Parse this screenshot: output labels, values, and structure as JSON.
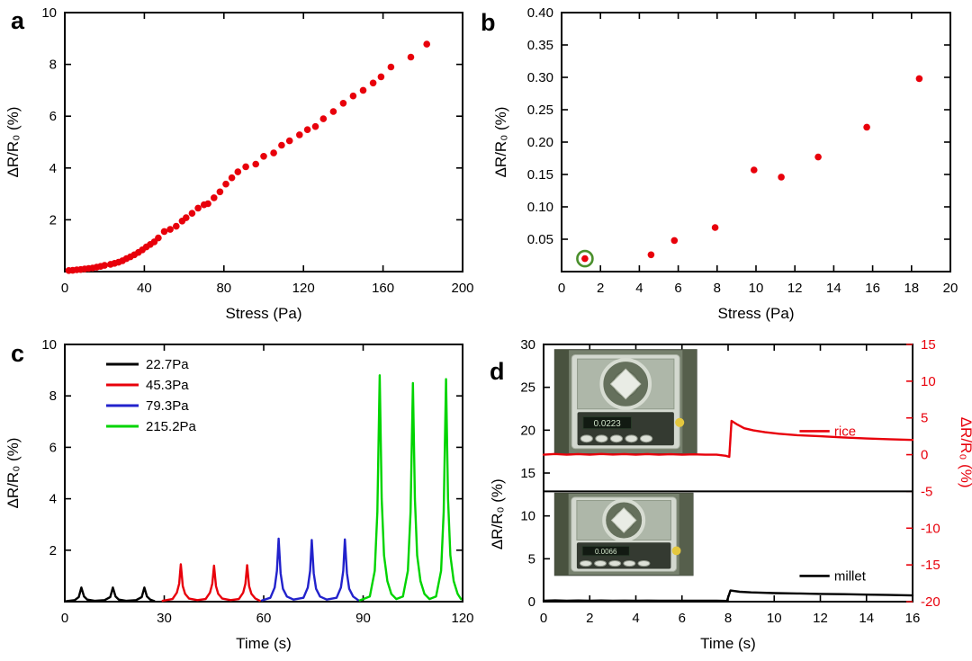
{
  "figure": {
    "background": "#ffffff"
  },
  "chart_data": [
    {
      "panel_label": "a",
      "type": "scatter",
      "xlabel": "Stress (Pa)",
      "ylabel": "ΔR/R₀ (%)",
      "xlim": [
        0,
        200
      ],
      "ylim": [
        0,
        10
      ],
      "xticks": [
        0,
        40,
        80,
        120,
        160,
        200
      ],
      "xtick_labels": [
        "0",
        "40",
        "80",
        "120",
        "160",
        "200"
      ],
      "yticks": [
        2,
        4,
        6,
        8,
        10
      ],
      "ytick_labels": [
        "2",
        "4",
        "6",
        "8",
        "10"
      ],
      "marker_color": "#e8000b",
      "points": [
        [
          2,
          0.04
        ],
        [
          4,
          0.05
        ],
        [
          6,
          0.07
        ],
        [
          8,
          0.08
        ],
        [
          10,
          0.1
        ],
        [
          12,
          0.12
        ],
        [
          14,
          0.14
        ],
        [
          16,
          0.17
        ],
        [
          18,
          0.2
        ],
        [
          20,
          0.24
        ],
        [
          23,
          0.28
        ],
        [
          25,
          0.32
        ],
        [
          27,
          0.36
        ],
        [
          29,
          0.42
        ],
        [
          31,
          0.5
        ],
        [
          33,
          0.57
        ],
        [
          35,
          0.65
        ],
        [
          37,
          0.74
        ],
        [
          39,
          0.84
        ],
        [
          41,
          0.95
        ],
        [
          43,
          1.05
        ],
        [
          45,
          1.15
        ],
        [
          47,
          1.3
        ],
        [
          50,
          1.55
        ],
        [
          53,
          1.63
        ],
        [
          56,
          1.75
        ],
        [
          59,
          1.95
        ],
        [
          61,
          2.08
        ],
        [
          64,
          2.25
        ],
        [
          67,
          2.45
        ],
        [
          70,
          2.58
        ],
        [
          72,
          2.62
        ],
        [
          75,
          2.85
        ],
        [
          78,
          3.08
        ],
        [
          81,
          3.38
        ],
        [
          84,
          3.62
        ],
        [
          87,
          3.85
        ],
        [
          91,
          4.05
        ],
        [
          96,
          4.15
        ],
        [
          100,
          4.45
        ],
        [
          105,
          4.58
        ],
        [
          109,
          4.88
        ],
        [
          113,
          5.05
        ],
        [
          118,
          5.28
        ],
        [
          122,
          5.48
        ],
        [
          126,
          5.6
        ],
        [
          130,
          5.9
        ],
        [
          135,
          6.18
        ],
        [
          140,
          6.5
        ],
        [
          145,
          6.78
        ],
        [
          150,
          7.0
        ],
        [
          155,
          7.28
        ],
        [
          159,
          7.52
        ],
        [
          164,
          7.9
        ],
        [
          174,
          8.28
        ],
        [
          182,
          8.78
        ]
      ]
    },
    {
      "panel_label": "b",
      "type": "scatter",
      "xlabel": "Stress (Pa)",
      "ylabel": "ΔR/R₀ (%)",
      "xlim": [
        0,
        20
      ],
      "ylim": [
        0,
        0.4
      ],
      "xticks": [
        0,
        2,
        4,
        6,
        8,
        10,
        12,
        14,
        16,
        18,
        20
      ],
      "xtick_labels": [
        "0",
        "2",
        "4",
        "6",
        "8",
        "10",
        "12",
        "14",
        "16",
        "18",
        "20"
      ],
      "yticks": [
        0.05,
        0.1,
        0.15,
        0.2,
        0.25,
        0.3,
        0.35,
        0.4
      ],
      "ytick_labels": [
        "0.05",
        "0.10",
        "0.15",
        "0.20",
        "0.25",
        "0.30",
        "0.35",
        "0.40"
      ],
      "marker_color": "#e8000b",
      "highlight_circle": {
        "x": 1.2,
        "y": 0.02,
        "color": "#4a8f2c"
      },
      "points": [
        [
          1.2,
          0.02
        ],
        [
          4.6,
          0.026
        ],
        [
          5.8,
          0.048
        ],
        [
          7.9,
          0.068
        ],
        [
          9.9,
          0.157
        ],
        [
          11.3,
          0.146
        ],
        [
          13.2,
          0.177
        ],
        [
          15.7,
          0.223
        ],
        [
          18.4,
          0.298
        ]
      ]
    },
    {
      "panel_label": "c",
      "type": "line",
      "xlabel": "Time (s)",
      "ylabel": "ΔR/R₀ (%)",
      "xlim": [
        0,
        120
      ],
      "ylim": [
        0,
        10
      ],
      "xticks": [
        0,
        30,
        60,
        90,
        120
      ],
      "xtick_labels": [
        "0",
        "30",
        "60",
        "90",
        "120"
      ],
      "yticks": [
        2,
        4,
        6,
        8,
        10
      ],
      "ytick_labels": [
        "2",
        "4",
        "6",
        "8",
        "10"
      ],
      "legend_position": "top-left",
      "series": [
        {
          "name": "22.7Pa",
          "color": "#000000",
          "points": [
            [
              0.5,
              0.02
            ],
            [
              3,
              0.06
            ],
            [
              4.2,
              0.18
            ],
            [
              5,
              0.55
            ],
            [
              5.8,
              0.2
            ],
            [
              6.8,
              0.08
            ],
            [
              9,
              0.03
            ],
            [
              12,
              0.06
            ],
            [
              13.7,
              0.18
            ],
            [
              14.5,
              0.55
            ],
            [
              15.3,
              0.2
            ],
            [
              16.3,
              0.08
            ],
            [
              18.5,
              0.03
            ],
            [
              21.5,
              0.06
            ],
            [
              23.2,
              0.18
            ],
            [
              24,
              0.55
            ],
            [
              24.8,
              0.2
            ],
            [
              25.8,
              0.08
            ],
            [
              27,
              0.02
            ]
          ]
        },
        {
          "name": "45.3Pa",
          "color": "#e8000b",
          "points": [
            [
              29.5,
              0.03
            ],
            [
              32.5,
              0.1
            ],
            [
              33.8,
              0.35
            ],
            [
              34.5,
              0.7
            ],
            [
              35,
              1.45
            ],
            [
              35.6,
              0.6
            ],
            [
              36.3,
              0.3
            ],
            [
              37.5,
              0.12
            ],
            [
              40,
              0.06
            ],
            [
              42.5,
              0.1
            ],
            [
              43.8,
              0.35
            ],
            [
              44.5,
              0.7
            ],
            [
              45,
              1.4
            ],
            [
              45.6,
              0.6
            ],
            [
              46.3,
              0.3
            ],
            [
              47.5,
              0.12
            ],
            [
              50,
              0.06
            ],
            [
              52.5,
              0.1
            ],
            [
              53.8,
              0.35
            ],
            [
              54.5,
              0.7
            ],
            [
              55,
              1.42
            ],
            [
              55.6,
              0.6
            ],
            [
              56.3,
              0.3
            ],
            [
              57.5,
              0.12
            ],
            [
              58.8,
              0.04
            ]
          ]
        },
        {
          "name": "79.3Pa",
          "color": "#2222cc",
          "points": [
            [
              59.5,
              0.05
            ],
            [
              62,
              0.15
            ],
            [
              63.3,
              0.55
            ],
            [
              64,
              1.2
            ],
            [
              64.5,
              2.45
            ],
            [
              65.1,
              1.1
            ],
            [
              65.8,
              0.5
            ],
            [
              67,
              0.2
            ],
            [
              69,
              0.08
            ],
            [
              72,
              0.15
            ],
            [
              73.3,
              0.55
            ],
            [
              74,
              1.2
            ],
            [
              74.5,
              2.4
            ],
            [
              75.1,
              1.1
            ],
            [
              75.8,
              0.5
            ],
            [
              77,
              0.2
            ],
            [
              79,
              0.08
            ],
            [
              82,
              0.15
            ],
            [
              83.3,
              0.55
            ],
            [
              84,
              1.2
            ],
            [
              84.5,
              2.42
            ],
            [
              85.1,
              1.1
            ],
            [
              85.8,
              0.5
            ],
            [
              87,
              0.2
            ],
            [
              88.5,
              0.06
            ]
          ]
        },
        {
          "name": "215.2Pa",
          "color": "#00d400",
          "points": [
            [
              89,
              0.05
            ],
            [
              92,
              0.2
            ],
            [
              93.5,
              1.2
            ],
            [
              94.3,
              3.5
            ],
            [
              95,
              8.8
            ],
            [
              95.6,
              4.0
            ],
            [
              96.3,
              1.8
            ],
            [
              97.3,
              0.8
            ],
            [
              98.5,
              0.3
            ],
            [
              100,
              0.1
            ],
            [
              102,
              0.2
            ],
            [
              103.5,
              1.2
            ],
            [
              104.3,
              3.5
            ],
            [
              105,
              8.5
            ],
            [
              105.6,
              4.0
            ],
            [
              106.3,
              1.8
            ],
            [
              107.3,
              0.8
            ],
            [
              108.5,
              0.3
            ],
            [
              110,
              0.1
            ],
            [
              112,
              0.2
            ],
            [
              113.5,
              1.2
            ],
            [
              114.3,
              3.5
            ],
            [
              115,
              8.65
            ],
            [
              115.6,
              4.0
            ],
            [
              116.3,
              1.8
            ],
            [
              117.3,
              0.8
            ],
            [
              118.5,
              0.3
            ],
            [
              119.5,
              0.1
            ]
          ]
        }
      ]
    },
    {
      "panel_label": "d",
      "type": "dual-axis-line",
      "xlabel": "Time (s)",
      "left_ylabel": "ΔR/R₀ (%)",
      "right_ylabel": "ΔR/R₀ (%)",
      "right_axis_color": "#e8000b",
      "xlim": [
        0,
        16
      ],
      "xticks": [
        0,
        2,
        4,
        6,
        8,
        10,
        12,
        14,
        16
      ],
      "xtick_labels": [
        "0",
        "2",
        "4",
        "6",
        "8",
        "10",
        "12",
        "14",
        "16"
      ],
      "left_ylim": [
        0,
        30
      ],
      "left_yticks": [
        0,
        5,
        10,
        15,
        20,
        25,
        30
      ],
      "left_ytick_labels": [
        "0",
        "5",
        "10",
        "15",
        "20",
        "25",
        "30"
      ],
      "right_ylim": [
        -20,
        15
      ],
      "right_yticks": [
        -20,
        -15,
        -10,
        -5,
        0,
        5,
        10,
        15
      ],
      "right_ytick_labels": [
        "-20",
        "-15",
        "-10",
        "-5",
        "0",
        "5",
        "10",
        "15"
      ],
      "divider_right_value": -5,
      "series": [
        {
          "name": "rice",
          "axis": "right",
          "color": "#e8000b",
          "label": "rice",
          "label_x": 12.6,
          "label_y": 3.2,
          "points": [
            [
              0,
              0.0
            ],
            [
              0.5,
              0.1
            ],
            [
              1,
              0.0
            ],
            [
              1.5,
              0.08
            ],
            [
              2,
              0.0
            ],
            [
              2.5,
              0.1
            ],
            [
              3,
              0.02
            ],
            [
              3.5,
              0.08
            ],
            [
              4,
              0.0
            ],
            [
              4.5,
              0.08
            ],
            [
              5,
              0.0
            ],
            [
              5.5,
              0.06
            ],
            [
              6,
              0.0
            ],
            [
              6.5,
              0.05
            ],
            [
              7,
              0.0
            ],
            [
              7.5,
              0.0
            ],
            [
              7.9,
              -0.15
            ],
            [
              8.05,
              -0.3
            ],
            [
              8.15,
              4.6
            ],
            [
              8.4,
              4.1
            ],
            [
              8.7,
              3.6
            ],
            [
              9.1,
              3.3
            ],
            [
              9.6,
              3.05
            ],
            [
              10.2,
              2.85
            ],
            [
              11,
              2.65
            ],
            [
              12,
              2.5
            ],
            [
              13,
              2.35
            ],
            [
              14,
              2.2
            ],
            [
              15,
              2.1
            ],
            [
              16,
              2.0
            ]
          ]
        },
        {
          "name": "millet",
          "axis": "left",
          "color": "#000000",
          "label": "millet",
          "label_x": 12.6,
          "label_y": 3.0,
          "points": [
            [
              0,
              0.1
            ],
            [
              0.5,
              0.15
            ],
            [
              1,
              0.1
            ],
            [
              1.5,
              0.14
            ],
            [
              2,
              0.1
            ],
            [
              2.5,
              0.14
            ],
            [
              3,
              0.1
            ],
            [
              3.5,
              0.13
            ],
            [
              4,
              0.1
            ],
            [
              4.5,
              0.13
            ],
            [
              5,
              0.1
            ],
            [
              5.5,
              0.12
            ],
            [
              6,
              0.1
            ],
            [
              6.5,
              0.12
            ],
            [
              7,
              0.1
            ],
            [
              7.5,
              0.1
            ],
            [
              7.95,
              0.08
            ],
            [
              8.1,
              1.3
            ],
            [
              8.5,
              1.15
            ],
            [
              9,
              1.08
            ],
            [
              10,
              1.0
            ],
            [
              11,
              0.95
            ],
            [
              12,
              0.9
            ],
            [
              13,
              0.87
            ],
            [
              14,
              0.82
            ],
            [
              15,
              0.78
            ],
            [
              16,
              0.72
            ]
          ]
        }
      ],
      "insets": [
        {
          "name": "rice-balance-photo",
          "display_value": "0.0223"
        },
        {
          "name": "millet-balance-photo",
          "display_value": "0.0066"
        }
      ]
    }
  ]
}
